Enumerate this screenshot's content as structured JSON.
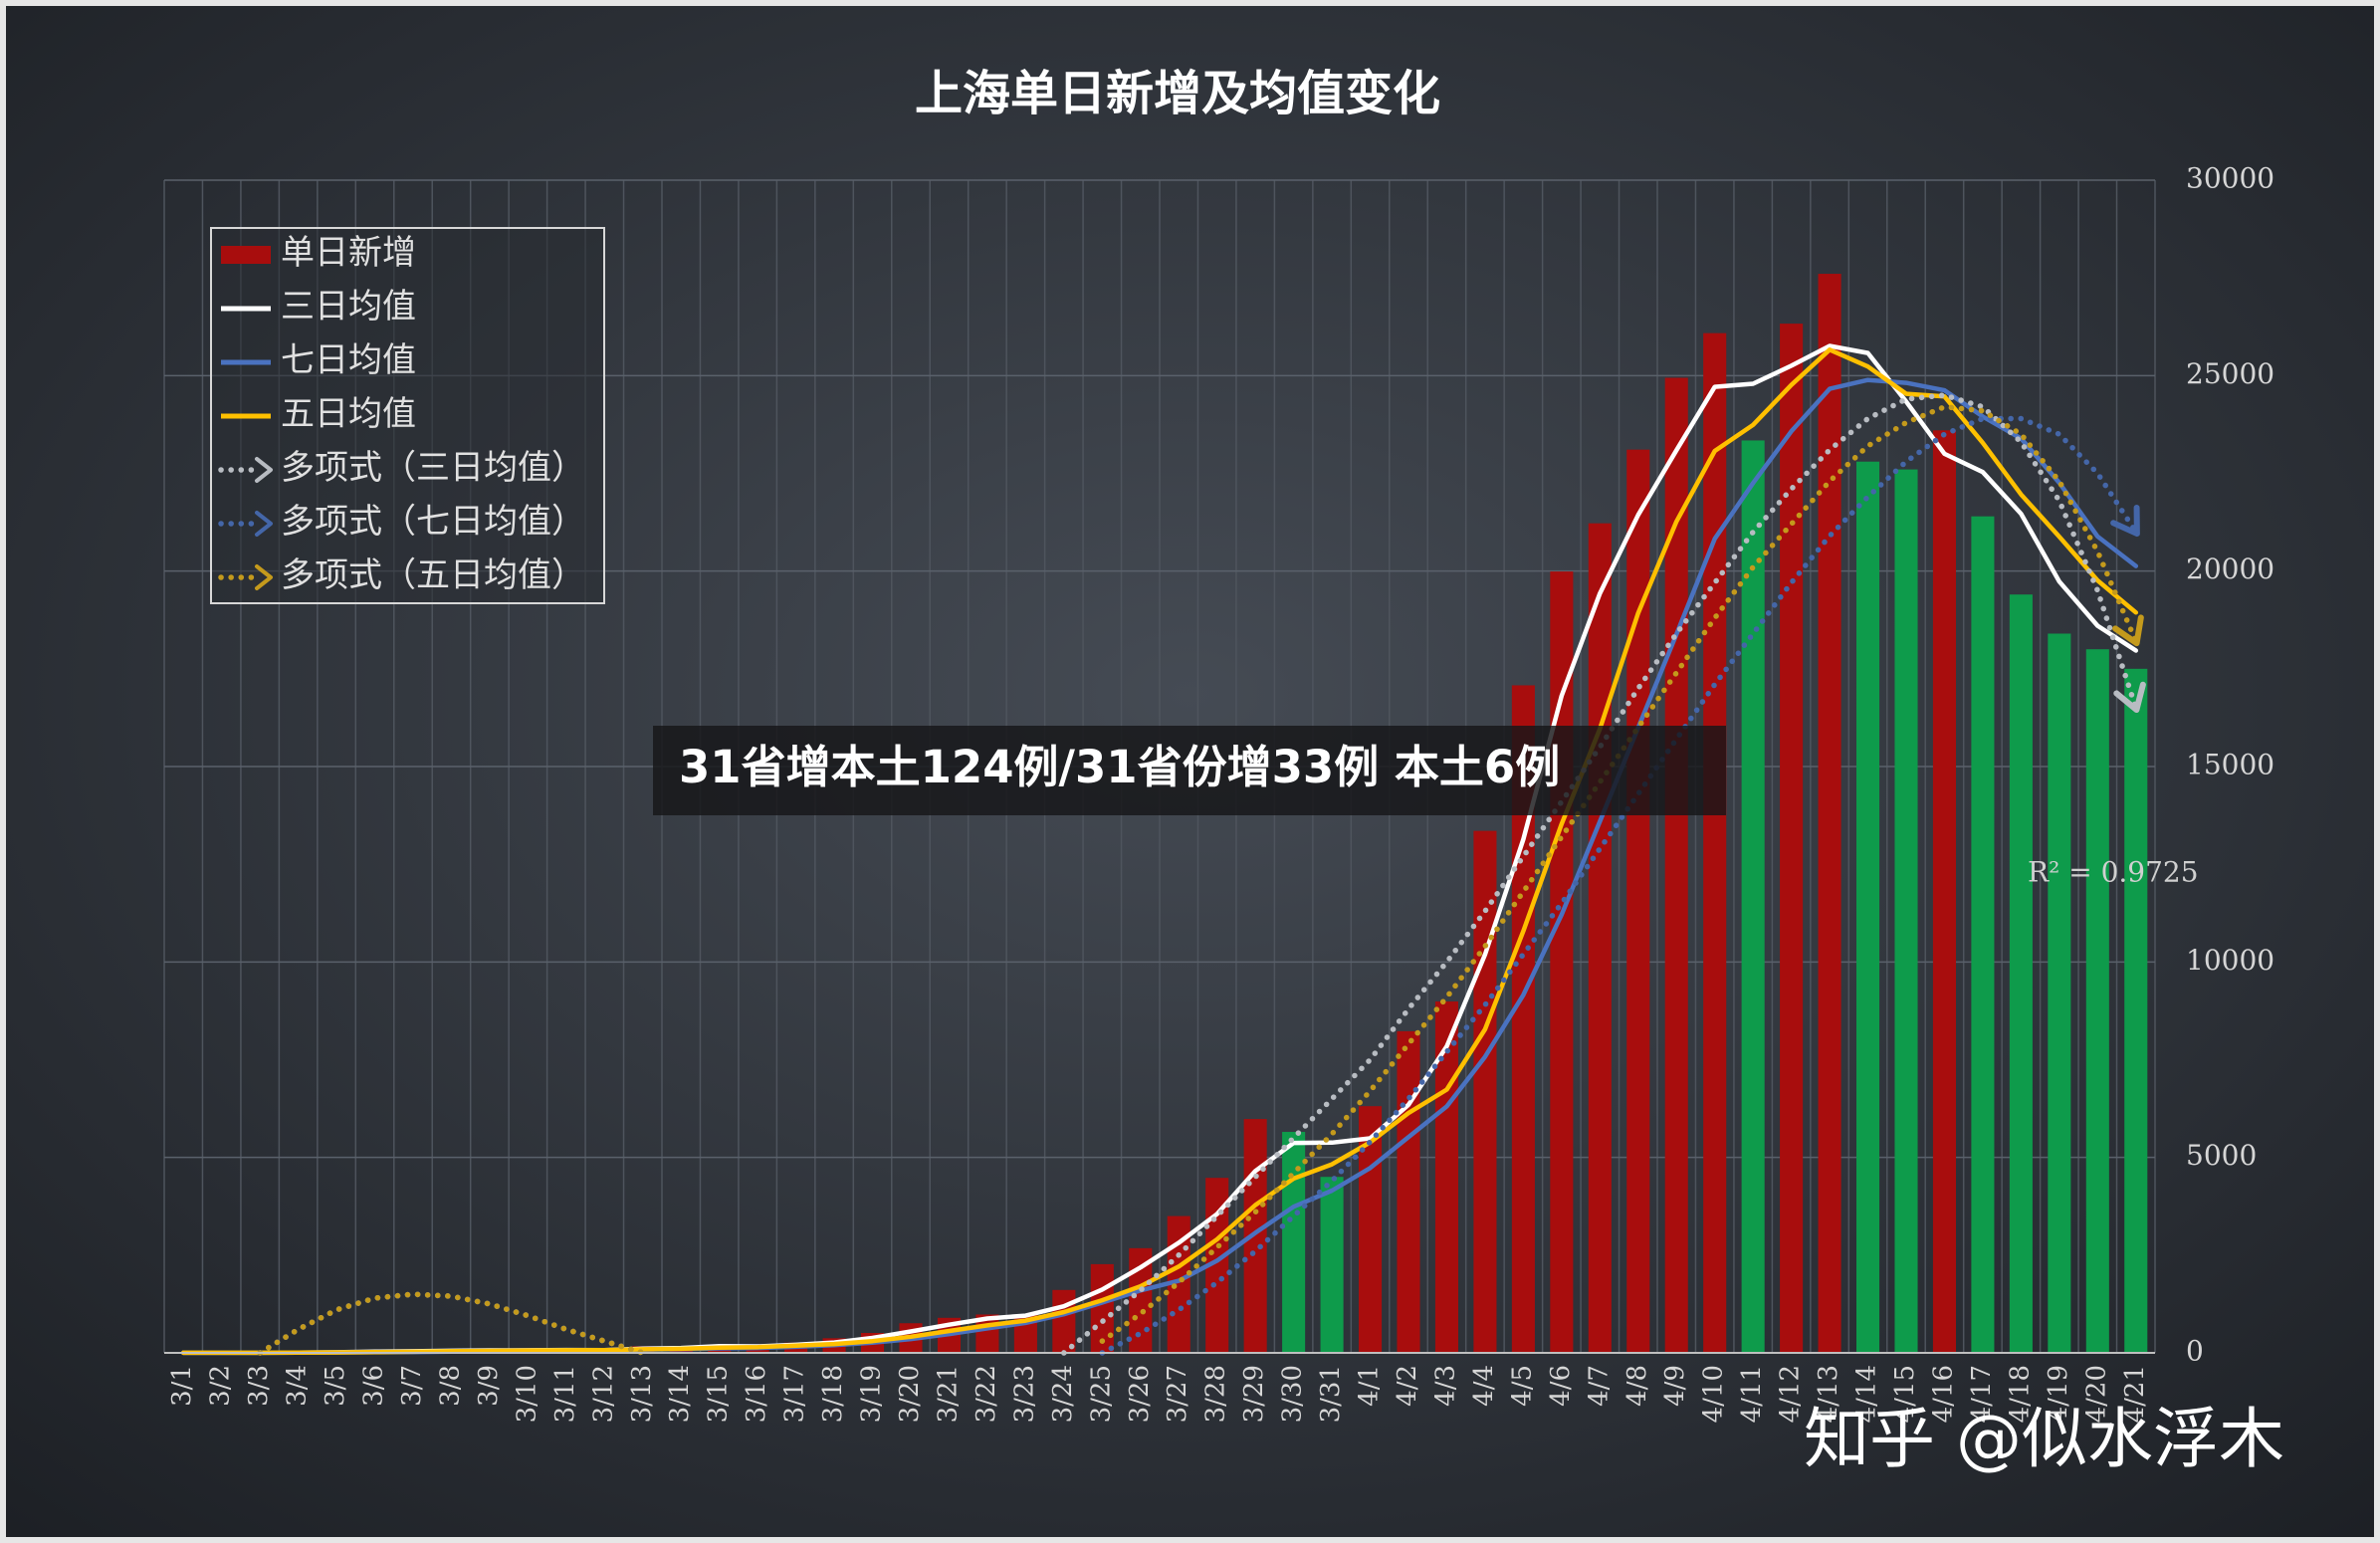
{
  "chart_data": {
    "type": "bar",
    "title": "上海单日新增及均值变化",
    "banner": "31省增本土124例/31省份增33例 本土6例",
    "annotation": "R² = 0.9725",
    "watermark": "知乎 @似水浮木",
    "legend": "upper left",
    "grid": true,
    "ylim": [
      0,
      30000
    ],
    "yticks": [
      0,
      5000,
      10000,
      15000,
      20000,
      25000,
      30000
    ],
    "categories": [
      "3/1",
      "3/2",
      "3/3",
      "3/4",
      "3/5",
      "3/6",
      "3/7",
      "3/8",
      "3/9",
      "3/10",
      "3/11",
      "3/12",
      "3/13",
      "3/14",
      "3/15",
      "3/16",
      "3/17",
      "3/18",
      "3/19",
      "3/20",
      "3/21",
      "3/22",
      "3/23",
      "3/24",
      "3/25",
      "3/26",
      "3/27",
      "3/28",
      "3/29",
      "3/30",
      "3/31",
      "4/1",
      "4/2",
      "4/3",
      "4/4",
      "4/5",
      "4/6",
      "4/7",
      "4/8",
      "4/9",
      "4/10",
      "4/11",
      "4/12",
      "4/13",
      "4/14",
      "4/15",
      "4/16",
      "4/17",
      "4/18",
      "4/19",
      "4/20",
      "4/21"
    ],
    "series": [
      {
        "name": "单日新增",
        "type": "bar",
        "color": "#a80d0d",
        "values": [
          2,
          2,
          3,
          16,
          28,
          45,
          51,
          62,
          76,
          64,
          83,
          65,
          169,
          139,
          202,
          158,
          260,
          374,
          509,
          758,
          896,
          981,
          983,
          1609,
          2269,
          2678,
          3500,
          4477,
          5982,
          5653,
          4502,
          6311,
          8228,
          8989,
          13354,
          17077,
          19989,
          21222,
          23107,
          24944,
          26087,
          23342,
          26330,
          27605,
          22800,
          22600,
          23600,
          21400,
          19400,
          18400,
          18000,
          17500
        ],
        "colors": [
          "#a80d0d",
          "#a80d0d",
          "#a80d0d",
          "#a80d0d",
          "#a80d0d",
          "#a80d0d",
          "#a80d0d",
          "#a80d0d",
          "#a80d0d",
          "#a80d0d",
          "#a80d0d",
          "#a80d0d",
          "#a80d0d",
          "#a80d0d",
          "#a80d0d",
          "#a80d0d",
          "#a80d0d",
          "#a80d0d",
          "#a80d0d",
          "#a80d0d",
          "#a80d0d",
          "#a80d0d",
          "#a80d0d",
          "#a80d0d",
          "#a80d0d",
          "#a80d0d",
          "#a80d0d",
          "#a80d0d",
          "#a80d0d",
          "#0e9b4b",
          "#0e9b4b",
          "#a80d0d",
          "#a80d0d",
          "#a80d0d",
          "#a80d0d",
          "#a80d0d",
          "#a80d0d",
          "#a80d0d",
          "#a80d0d",
          "#a80d0d",
          "#a80d0d",
          "#0e9b4b",
          "#a80d0d",
          "#a80d0d",
          "#0e9b4b",
          "#0e9b4b",
          "#a80d0d",
          "#0e9b4b",
          "#0e9b4b",
          "#0e9b4b",
          "#0e9b4b",
          "#0e9b4b"
        ]
      },
      {
        "name": "三日均值",
        "type": "line",
        "color": "#ffffff",
        "values": [
          2,
          2,
          2,
          7,
          16,
          30,
          41,
          53,
          63,
          67,
          74,
          71,
          106,
          124,
          170,
          166,
          207,
          264,
          381,
          547,
          721,
          878,
          953,
          1191,
          1620,
          2185,
          2816,
          3552,
          4653,
          5371,
          5379,
          5489,
          6347,
          7843,
          10190,
          13140,
          16807,
          19429,
          21439,
          23091,
          24713,
          24791,
          25253,
          25759,
          25578,
          24335,
          23000,
          22533,
          21467,
          19733,
          18600,
          17967
        ]
      },
      {
        "name": "七日均值",
        "type": "line",
        "color": "#4a72c0",
        "values": [
          2,
          2,
          2,
          6,
          10,
          16,
          21,
          30,
          40,
          49,
          58,
          64,
          81,
          94,
          114,
          126,
          155,
          195,
          259,
          355,
          480,
          627,
          766,
          987,
          1286,
          1596,
          1845,
          2357,
          3071,
          3738,
          4152,
          4729,
          5522,
          6306,
          7574,
          9159,
          11207,
          13596,
          15995,
          18383,
          20826,
          22253,
          23574,
          24662,
          24888,
          24815,
          24623,
          23954,
          23391,
          22258,
          20886,
          20129
        ]
      },
      {
        "name": "五日均值",
        "type": "line",
        "color": "#ffc000",
        "values": [
          2,
          2,
          2,
          6,
          10,
          19,
          29,
          40,
          52,
          60,
          67,
          70,
          91,
          104,
          132,
          147,
          186,
          227,
          301,
          412,
          559,
          704,
          825,
          1045,
          1348,
          1704,
          2208,
          2907,
          3781,
          4458,
          4823,
          5385,
          6135,
          6737,
          8277,
          10792,
          13527,
          15966,
          18930,
          21268,
          23074,
          23741,
          24762,
          25662,
          25233,
          24535,
          24467,
          23281,
          21960,
          20880,
          19760,
          18940
        ]
      },
      {
        "name": "多项式（三日均值）",
        "type": "trend",
        "color": "#b8bcc2",
        "values": [
          null,
          null,
          0,
          600,
          1100,
          1400,
          1500,
          1450,
          1250,
          950,
          600,
          300,
          0,
          null,
          null,
          null,
          null,
          null,
          null,
          null,
          null,
          null,
          null,
          0,
          800,
          1600,
          2500,
          3500,
          4500,
          5500,
          6500,
          7500,
          8800,
          10000,
          11300,
          12700,
          14100,
          15500,
          17000,
          18400,
          19700,
          21000,
          22100,
          23100,
          23900,
          24400,
          24500,
          24200,
          23300,
          21800,
          19500,
          16500
        ]
      },
      {
        "name": "多项式（七日均值）",
        "type": "trend",
        "color": "#4466a8",
        "values": [
          null,
          null,
          0,
          600,
          1100,
          1400,
          1500,
          1450,
          1250,
          950,
          600,
          300,
          0,
          null,
          null,
          null,
          null,
          null,
          null,
          null,
          null,
          null,
          null,
          null,
          0,
          500,
          1100,
          1800,
          2600,
          3500,
          4400,
          5400,
          6500,
          7700,
          8900,
          10200,
          11500,
          12900,
          14300,
          15700,
          17100,
          18400,
          19700,
          20900,
          21900,
          22800,
          23500,
          23900,
          23900,
          23500,
          22500,
          21000
        ]
      },
      {
        "name": "多项式（五日均值）",
        "type": "trend",
        "color": "#c49a1c",
        "values": [
          null,
          null,
          0,
          600,
          1100,
          1400,
          1500,
          1450,
          1250,
          950,
          600,
          300,
          0,
          null,
          null,
          null,
          null,
          null,
          null,
          null,
          null,
          null,
          null,
          null,
          300,
          1000,
          1800,
          2700,
          3600,
          4600,
          5600,
          6700,
          7900,
          9100,
          10400,
          11800,
          13200,
          14600,
          16000,
          17400,
          18800,
          20100,
          21200,
          22300,
          23200,
          23800,
          24200,
          24100,
          23500,
          22300,
          20500,
          18200
        ]
      }
    ]
  }
}
